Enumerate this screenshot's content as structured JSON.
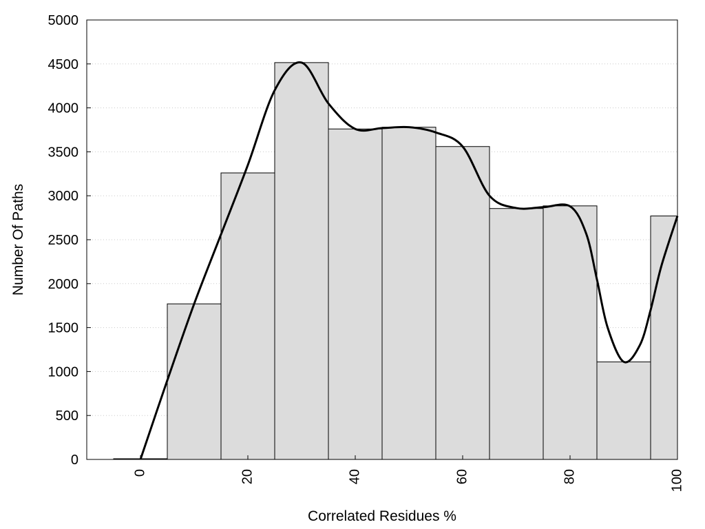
{
  "chart_data": {
    "type": "bar",
    "title": "",
    "xlabel": "Correlated Residues %",
    "ylabel": "Number Of Paths",
    "xlim": [
      -10,
      100
    ],
    "ylim": [
      0,
      5000
    ],
    "grid": true,
    "bar_width": 10,
    "bar_centers": [
      0,
      10,
      20,
      30,
      40,
      50,
      60,
      70,
      80,
      90,
      100
    ],
    "bar_values": [
      8,
      1770,
      3260,
      4515,
      3760,
      3780,
      3560,
      2855,
      2885,
      1110,
      2770
    ],
    "x_ticks": [
      "0",
      "20",
      "40",
      "60",
      "80",
      "100"
    ],
    "y_ticks": [
      "0",
      "500",
      "1000",
      "1500",
      "2000",
      "2500",
      "3000",
      "3500",
      "4000",
      "4500",
      "5000"
    ],
    "smooth_curve": {
      "x": [
        0,
        5,
        10,
        15,
        20,
        25,
        30,
        35,
        40,
        45,
        50,
        55,
        60,
        65,
        70,
        75,
        80,
        83,
        85,
        87,
        90,
        93,
        95,
        97,
        100
      ],
      "y": [
        0,
        900,
        1770,
        2560,
        3350,
        4200,
        4515,
        4050,
        3760,
        3770,
        3780,
        3720,
        3560,
        3000,
        2860,
        2870,
        2880,
        2570,
        2050,
        1500,
        1110,
        1300,
        1700,
        2200,
        2770
      ]
    },
    "colors": {
      "bar_fill": "#dcdcdc",
      "bar_stroke": "#000000",
      "curve": "#000000",
      "grid": "#c8c8c8"
    }
  }
}
